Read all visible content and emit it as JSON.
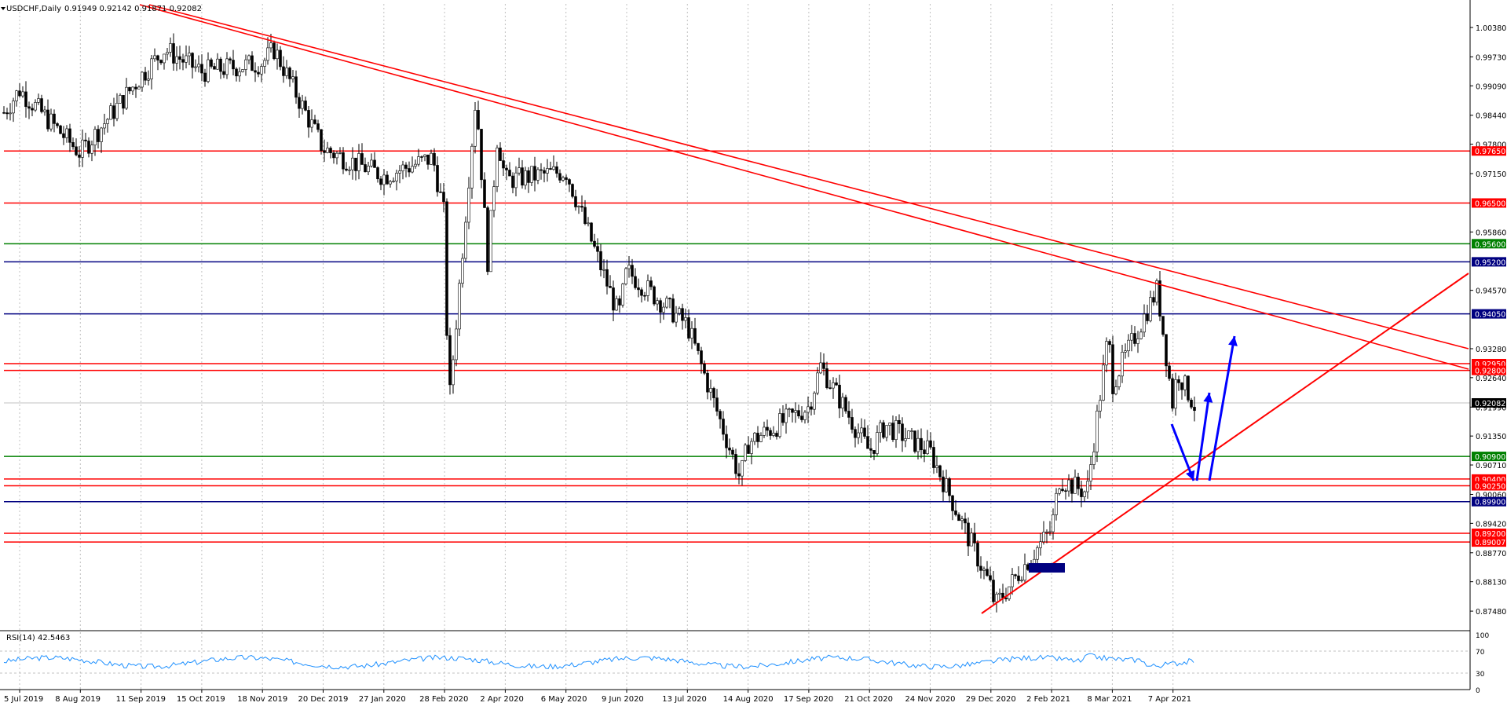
{
  "header": {
    "symbol": "USDCHF,Daily",
    "ohlc": "0.91949 0.92142 0.91871 0.92082"
  },
  "rsi_panel": {
    "label": "RSI(14) 42.5463",
    "scale_labels": [
      "100",
      "70",
      "30",
      "0"
    ]
  },
  "colors": {
    "candle": "#000000",
    "red_line": "#ff0000",
    "green_line": "#008000",
    "blue_line": "#000080",
    "arrow": "#0000ff",
    "rsi": "#1e90ff",
    "grid": "#c0c0c0"
  },
  "chart_data": {
    "type": "candlestick",
    "title": "USDCHF,Daily",
    "x_dates": [
      "5 Jul 2019",
      "8 Aug 2019",
      "11 Sep 2019",
      "15 Oct 2019",
      "18 Nov 2019",
      "20 Dec 2019",
      "27 Jan 2020",
      "28 Feb 2020",
      "2 Apr 2020",
      "6 May 2020",
      "9 Jun 2020",
      "13 Jul 2020",
      "14 Aug 2020",
      "17 Sep 2020",
      "21 Oct 2020",
      "24 Nov 2020",
      "29 Dec 2020",
      "2 Feb 2021",
      "8 Mar 2021",
      "7 Apr 2021"
    ],
    "y_ticks": [
      "1.00380",
      "0.99730",
      "0.99090",
      "0.98440",
      "0.97800",
      "0.97150",
      "0.95860",
      "0.94570",
      "0.93280",
      "0.92640",
      "0.91990",
      "0.91350",
      "0.90710",
      "0.90060",
      "0.89420",
      "0.88770",
      "0.88130",
      "0.87480"
    ],
    "ylim": [
      0.871,
      1.009
    ],
    "price_path": [
      [
        "5 Jul 2019",
        0.99
      ],
      [
        "8 Aug 2019",
        0.976
      ],
      [
        "11 Sep 2019",
        0.993
      ],
      [
        "15 Oct 2019",
        0.994
      ],
      [
        "18 Nov 2019",
        0.996
      ],
      [
        "20 Dec 2019",
        0.977
      ],
      [
        "27 Jan 2020",
        0.971
      ],
      [
        "28 Feb 2020",
        0.962
      ],
      [
        "2 Apr 2020",
        0.97
      ],
      [
        "6 May 2020",
        0.972
      ],
      [
        "9 Jun 2020",
        0.95
      ],
      [
        "13 Jul 2020",
        0.938
      ],
      [
        "14 Aug 2020",
        0.912
      ],
      [
        "17 Sep 2020",
        0.92
      ],
      [
        "21 Oct 2020",
        0.91
      ],
      [
        "24 Nov 2020",
        0.91
      ],
      [
        "29 Dec 2020",
        0.88
      ],
      [
        "2 Feb 2021",
        0.893
      ],
      [
        "8 Mar 2021",
        0.925
      ],
      [
        "7 Apr 2021",
        0.92
      ]
    ],
    "horizontal_levels": [
      {
        "price": 0.9765,
        "label": "0.97650",
        "color": "red"
      },
      {
        "price": 0.965,
        "label": "0.96500",
        "color": "red"
      },
      {
        "price": 0.956,
        "label": "0.95600",
        "color": "green"
      },
      {
        "price": 0.952,
        "label": "0.95200",
        "color": "blue"
      },
      {
        "price": 0.9405,
        "label": "0.94050",
        "color": "blue"
      },
      {
        "price": 0.9295,
        "label": "0.92950",
        "color": "red"
      },
      {
        "price": 0.928,
        "label": "0.92800",
        "color": "red"
      },
      {
        "price": 0.909,
        "label": "0.90900",
        "color": "green"
      },
      {
        "price": 0.904,
        "label": "0.90400",
        "color": "red"
      },
      {
        "price": 0.9025,
        "label": "0.90250",
        "color": "red"
      },
      {
        "price": 0.899,
        "label": "0.89900",
        "color": "blue"
      },
      {
        "price": 0.892,
        "label": "0.89200",
        "color": "red"
      },
      {
        "price": 0.89007,
        "label": "0.89007",
        "color": "red"
      }
    ],
    "current_price": {
      "price": 0.92082,
      "label": "0.92082"
    }
  }
}
